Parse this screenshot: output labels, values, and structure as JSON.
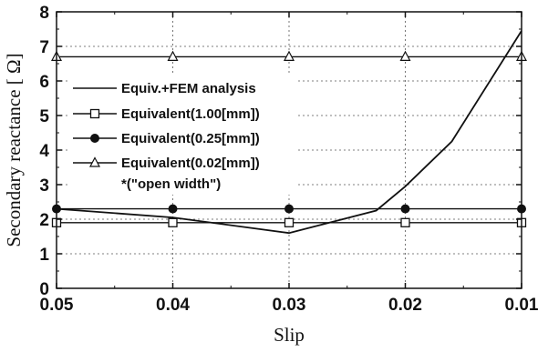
{
  "chart_data": {
    "type": "line",
    "xlabel": "Slip",
    "ylabel": "Secondary reactance [ Ω]",
    "xlim": [
      0.05,
      0.01
    ],
    "ylim": [
      0,
      8
    ],
    "x_reversed": true,
    "xticks": [
      "0.05",
      "0.04",
      "0.03",
      "0.02",
      "0.01"
    ],
    "yticks": [
      "0",
      "1",
      "2",
      "3",
      "4",
      "5",
      "6",
      "7",
      "8"
    ],
    "grid": true,
    "legend_position": "upper-left",
    "series": [
      {
        "name": "Equiv.+FEM analysis",
        "marker": "none",
        "x": [
          0.05,
          0.04,
          0.03,
          0.0225,
          0.02,
          0.016,
          0.01
        ],
        "y": [
          2.3,
          2.05,
          1.6,
          2.25,
          2.95,
          4.25,
          7.45
        ]
      },
      {
        "name": "Equivalent(1.00[mm])",
        "marker": "open-square",
        "x": [
          0.05,
          0.04,
          0.03,
          0.02,
          0.01
        ],
        "y": [
          1.9,
          1.9,
          1.9,
          1.9,
          1.9
        ]
      },
      {
        "name": "Equivalent(0.25[mm])",
        "marker": "filled-circle",
        "x": [
          0.05,
          0.04,
          0.03,
          0.02,
          0.01
        ],
        "y": [
          2.3,
          2.3,
          2.3,
          2.3,
          2.3
        ]
      },
      {
        "name": "Equivalent(0.02[mm])",
        "marker": "open-triangle",
        "x": [
          0.05,
          0.04,
          0.03,
          0.02,
          0.01
        ],
        "y": [
          6.7,
          6.7,
          6.7,
          6.7,
          6.7
        ]
      }
    ],
    "legend_note": "*(\"open width\")"
  }
}
